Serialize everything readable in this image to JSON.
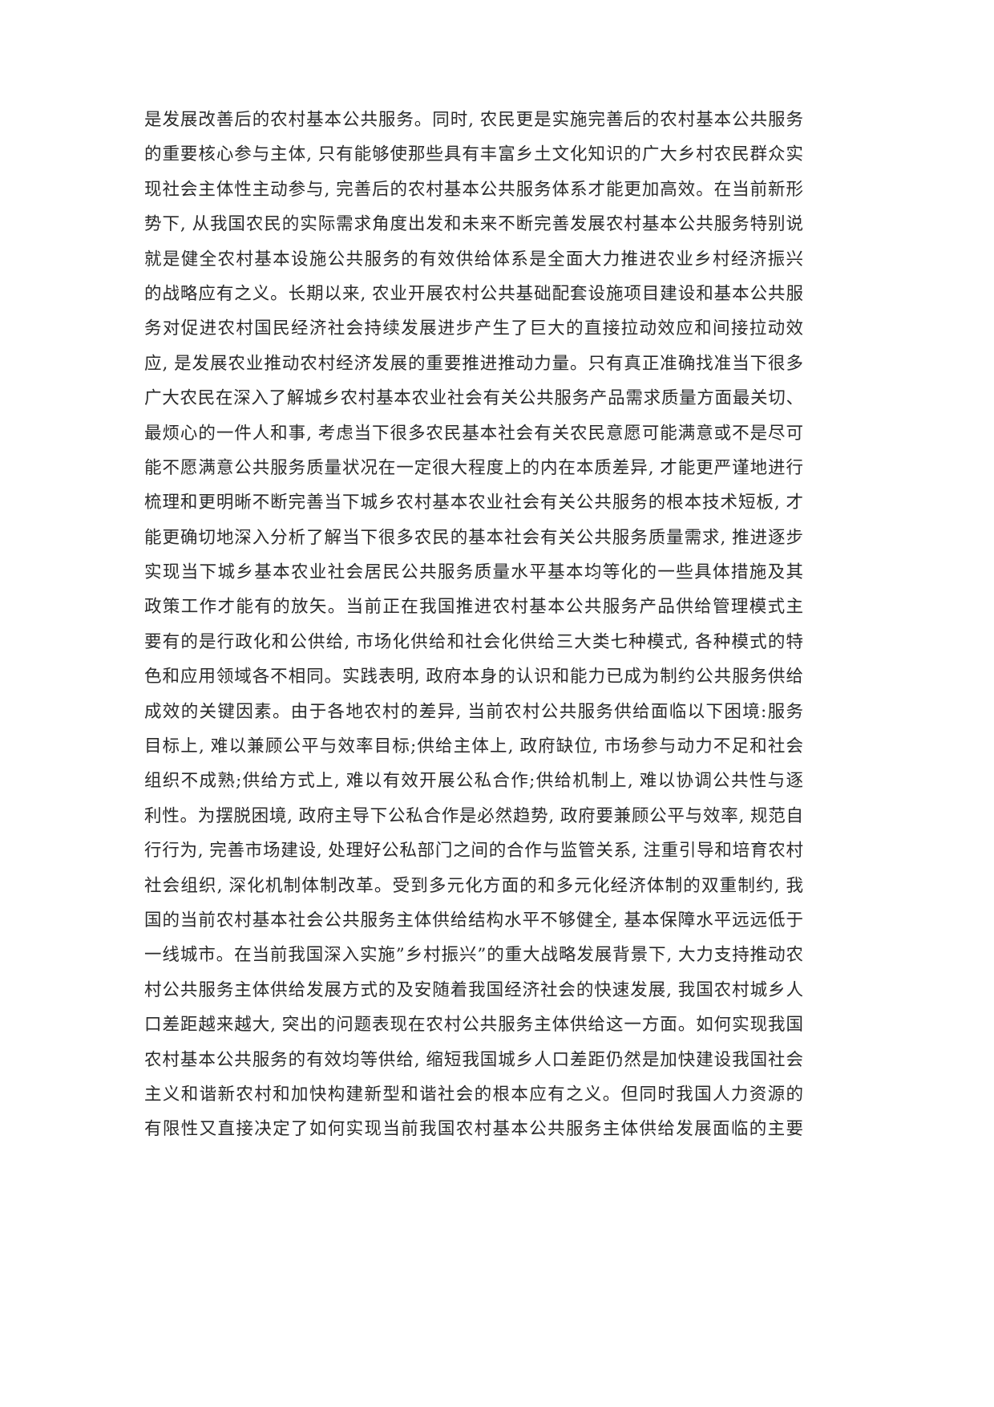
{
  "document": {
    "lines": [
      "是发展改善后的农村基本公共服务。同时, 农民更是实施完善后的农村基本公共服务",
      "的重要核心参与主体, 只有能够使那些具有丰富乡土文化知识的广大乡村农民群众实",
      "现社会主体性主动参与, 完善后的农村基本公共服务体系才能更加高效。在当前新形",
      "势下, 从我国农民的实际需求角度出发和未来不断完善发展农村基本公共服务特别说",
      "就是健全农村基本设施公共服务的有效供给体系是全面大力推进农业乡村经济振兴",
      "的战略应有之义。长期以来, 农业开展农村公共基础配套设施项目建设和基本公共服",
      "务对促进农村国民经济社会持续发展进步产生了巨大的直接拉动效应和间接拉动效",
      "应, 是发展农业推动农村经济发展的重要推进推动力量。只有真正准确找准当下很多",
      "广大农民在深入了解城乡农村基本农业社会有关公共服务产品需求质量方面最关切、",
      "最烦心的一件人和事, 考虑当下很多农民基本社会有关农民意愿可能满意或不是尽可",
      "能不愿满意公共服务质量状况在一定很大程度上的内在本质差异, 才能更严谨地进行",
      "梳理和更明晰不断完善当下城乡农村基本农业社会有关公共服务的根本技术短板, 才",
      "能更确切地深入分析了解当下很多农民的基本社会有关公共服务质量需求, 推进逐步",
      "实现当下城乡基本农业社会居民公共服务质量水平基本均等化的一些具体措施及其",
      "政策工作才能有的放矢。当前正在我国推进农村基本公共服务产品供给管理模式主",
      "要有的是行政化和公供给, 市场化供给和社会化供给三大类七种模式, 各种模式的特",
      "色和应用领域各不相同。实践表明, 政府本身的认识和能力已成为制约公共服务供给",
      "成效的关键因素。由于各地农村的差异, 当前农村公共服务供给面临以下困境:服务",
      "目标上, 难以兼顾公平与效率目标;供给主体上, 政府缺位, 市场参与动力不足和社会",
      "组织不成熟;供给方式上, 难以有效开展公私合作;供给机制上, 难以协调公共性与逐",
      "利性。为摆脱困境, 政府主导下公私合作是必然趋势, 政府要兼顾公平与效率, 规范自",
      "行行为, 完善市场建设, 处理好公私部门之间的合作与监管关系, 注重引导和培育农村",
      "社会组织, 深化机制体制改革。受到多元化方面的和多元化经济体制的双重制约, 我",
      "国的当前农村基本社会公共服务主体供给结构水平不够健全, 基本保障水平远远低于",
      "一线城市。在当前我国深入实施”乡村振兴”的重大战略发展背景下, 大力支持推动农",
      "村公共服务主体供给发展方式的及安随着我国经济社会的快速发展, 我国农村城乡人",
      "口差距越来越大, 突出的问题表现在农村公共服务主体供给这一方面。如何实现我国",
      "农村基本公共服务的有效均等供给, 缩短我国城乡人口差距仍然是加快建设我国社会",
      "主义和谐新农村和加快构建新型和谐社会的根本应有之义。但同时我国人力资源的",
      "有限性又直接决定了如何实现当前我国农村基本公共服务主体供给发展面临的主要"
    ]
  }
}
